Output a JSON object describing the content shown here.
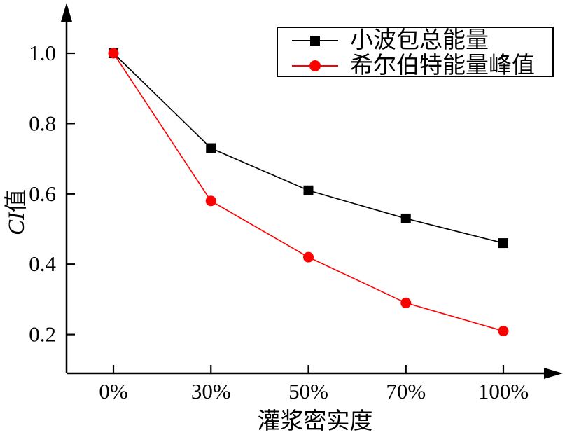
{
  "chart_data": {
    "type": "line",
    "title": "",
    "categories": [
      "0%",
      "30%",
      "50%",
      "70%",
      "100%"
    ],
    "series": [
      {
        "name": "小波包总能量",
        "color": "#000000",
        "marker": "square",
        "values": [
          1.0,
          0.73,
          0.61,
          0.53,
          0.46
        ]
      },
      {
        "name": "希尔伯特能量峰值",
        "color": "#ff0000",
        "marker": "circle",
        "values": [
          1.0,
          0.58,
          0.42,
          0.29,
          0.21
        ]
      }
    ],
    "xlabel": "灌浆密实度",
    "ylabel": "CI值",
    "ylabel_italic_part": "CI",
    "ylabel_text_part": "值",
    "yticks": [
      1.0,
      0.8,
      0.6,
      0.4,
      0.2
    ],
    "ylim": [
      0.09,
      1.14
    ],
    "grid": false,
    "legend_position": "top-right",
    "axis_color": "#000000",
    "background_color": "#ffffff"
  }
}
